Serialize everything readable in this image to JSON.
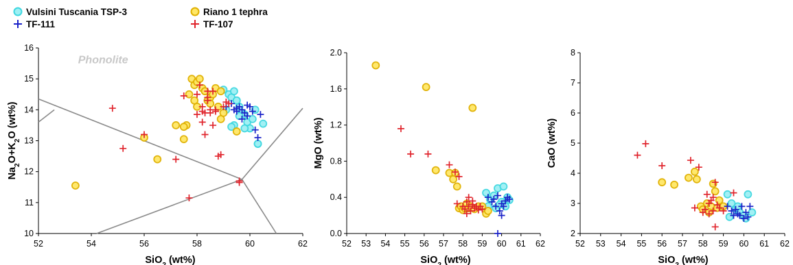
{
  "legend": [
    {
      "label": "Vulsini Tuscania TSP-3",
      "marker": "circle",
      "fill": "#9ef0f4",
      "stroke": "#3fd7e0"
    },
    {
      "label": "Riano 1 tephra",
      "marker": "circle",
      "fill": "#ffe766",
      "stroke": "#e0b000"
    },
    {
      "label": "TF-111",
      "marker": "plus",
      "stroke": "#1a22c8"
    },
    {
      "label": "TF-107",
      "marker": "plus",
      "stroke": "#e0242c"
    }
  ],
  "chart_data": [
    {
      "type": "scatter",
      "title": "",
      "xlabel": "SiO₂ (wt%)",
      "ylabel": "Na₂O+K₂O (wt%)",
      "xlim": [
        52,
        62
      ],
      "ylim": [
        10,
        16
      ],
      "xticks": [
        "52",
        "54",
        "56",
        "58",
        "60",
        "62"
      ],
      "yticks": [
        "10",
        "11",
        "12",
        "13",
        "14",
        "15",
        "16"
      ],
      "field_label": "Phonolite",
      "field_lines": [
        {
          "x": [
            52,
            59.7
          ],
          "y": [
            14.35,
            11.75
          ]
        },
        {
          "x": [
            52,
            52.6
          ],
          "y": [
            13.6,
            14.0
          ]
        },
        {
          "x": [
            59.7,
            62
          ],
          "y": [
            11.75,
            14.05
          ]
        },
        {
          "x": [
            54.2,
            59.7
          ],
          "y": [
            10.0,
            11.75
          ]
        },
        {
          "x": [
            59.7,
            61.0
          ],
          "y": [
            11.75,
            10.0
          ]
        }
      ],
      "series": [
        {
          "name": "Vulsini Tuscania TSP-3",
          "x": [
            59.0,
            59.2,
            59.3,
            59.4,
            59.5,
            59.6,
            59.7,
            59.8,
            59.9,
            60.0,
            60.1,
            60.2,
            60.3,
            60.5,
            59.1,
            59.4,
            59.6,
            59.8,
            59.3,
            59.5,
            60.3
          ],
          "y": [
            14.65,
            14.5,
            14.4,
            14.6,
            14.3,
            14.1,
            13.9,
            13.85,
            13.6,
            13.4,
            13.7,
            14.0,
            12.9,
            13.55,
            14.0,
            13.5,
            13.8,
            13.4,
            13.45,
            14.3,
            12.9
          ]
        },
        {
          "name": "Riano 1 tephra",
          "x": [
            53.4,
            56.0,
            56.5,
            57.2,
            57.5,
            57.6,
            57.5,
            57.7,
            57.8,
            57.9,
            58.0,
            58.1,
            58.2,
            58.3,
            58.4,
            58.5,
            58.6,
            58.7,
            58.8,
            58.9,
            59.0,
            58.5,
            58.9,
            59.5,
            58.3,
            58.0,
            57.9
          ],
          "y": [
            11.55,
            13.1,
            12.4,
            13.5,
            13.05,
            13.5,
            13.45,
            14.5,
            15.0,
            14.8,
            14.9,
            15.0,
            14.7,
            14.6,
            14.3,
            14.4,
            14.5,
            14.7,
            14.1,
            13.7,
            13.9,
            14.2,
            14.6,
            13.3,
            14.6,
            14.1,
            14.3
          ]
        },
        {
          "name": "TF-111",
          "x": [
            59.1,
            59.3,
            59.4,
            59.5,
            59.6,
            59.7,
            59.8,
            59.9,
            60.0,
            60.1,
            60.2,
            60.3,
            60.4,
            59.5,
            59.7,
            59.9
          ],
          "y": [
            14.1,
            14.2,
            14.0,
            14.05,
            14.1,
            14.0,
            13.9,
            14.15,
            14.1,
            13.95,
            13.35,
            13.1,
            13.85,
            13.95,
            13.7,
            13.8
          ]
        },
        {
          "name": "TF-107",
          "x": [
            54.8,
            55.2,
            56.0,
            57.2,
            57.5,
            57.7,
            58.0,
            58.1,
            58.2,
            58.2,
            58.3,
            58.3,
            58.4,
            58.4,
            58.5,
            58.5,
            58.6,
            58.6,
            58.7,
            58.8,
            58.9,
            59.0,
            59.1,
            59.2,
            58.4,
            58.7,
            59.6,
            59.6,
            58.0,
            58.2
          ],
          "y": [
            14.05,
            12.75,
            13.2,
            12.4,
            14.45,
            11.15,
            14.5,
            14.8,
            13.6,
            14.1,
            13.9,
            13.2,
            14.4,
            14.3,
            13.9,
            14.0,
            13.5,
            14.6,
            13.95,
            12.5,
            12.55,
            14.1,
            14.25,
            14.2,
            14.6,
            14.0,
            11.7,
            11.65,
            13.85,
            13.95
          ]
        }
      ]
    },
    {
      "type": "scatter",
      "title": "",
      "xlabel": "SiO₂ (wt%)",
      "ylabel": "MgO (wt%)",
      "xlim": [
        52,
        62
      ],
      "ylim": [
        0,
        2.0
      ],
      "xticks": [
        "52",
        "53",
        "54",
        "55",
        "56",
        "57",
        "58",
        "59",
        "60",
        "61",
        "62"
      ],
      "yticks": [
        "0.0",
        "0.4",
        "0.8",
        "1.2",
        "1.6",
        "2.0"
      ],
      "series": [
        {
          "name": "Vulsini Tuscania TSP-3",
          "x": [
            59.2,
            59.4,
            59.6,
            59.8,
            60.0,
            60.1,
            60.2,
            60.3,
            59.3,
            59.7,
            59.9,
            60.4
          ],
          "y": [
            0.45,
            0.38,
            0.42,
            0.5,
            0.35,
            0.52,
            0.3,
            0.4,
            0.3,
            0.28,
            0.32,
            0.37
          ]
        },
        {
          "name": "Riano 1 tephra",
          "x": [
            53.5,
            56.1,
            58.5,
            56.6,
            57.3,
            57.6,
            57.7,
            57.8,
            57.9,
            58.0,
            58.1,
            58.2,
            58.3,
            58.4,
            58.6,
            58.8,
            59.0,
            59.2,
            59.3,
            57.5
          ],
          "y": [
            1.86,
            1.62,
            1.39,
            0.7,
            0.67,
            0.67,
            0.52,
            0.28,
            0.3,
            0.26,
            0.28,
            0.33,
            0.28,
            0.3,
            0.27,
            0.3,
            0.3,
            0.22,
            0.25,
            0.6
          ]
        },
        {
          "name": "TF-111",
          "x": [
            59.3,
            59.5,
            59.6,
            59.7,
            59.8,
            59.9,
            60.0,
            60.1,
            60.2,
            60.3,
            60.4,
            59.8,
            60.0
          ],
          "y": [
            0.4,
            0.35,
            0.38,
            0.3,
            0.42,
            0.25,
            0.33,
            0.3,
            0.36,
            0.4,
            0.38,
            0.0,
            0.2
          ]
        },
        {
          "name": "TF-107",
          "x": [
            54.8,
            55.3,
            56.2,
            57.3,
            57.6,
            57.8,
            57.7,
            58.0,
            58.1,
            58.2,
            58.3,
            58.4,
            58.5,
            58.6,
            58.7,
            58.8,
            58.9,
            59.0,
            58.3,
            58.5,
            58.2
          ],
          "y": [
            1.16,
            0.88,
            0.88,
            0.76,
            0.68,
            0.63,
            0.33,
            0.3,
            0.27,
            0.35,
            0.3,
            0.25,
            0.32,
            0.28,
            0.3,
            0.26,
            0.3,
            0.27,
            0.4,
            0.36,
            0.22
          ]
        }
      ]
    },
    {
      "type": "scatter",
      "title": "",
      "xlabel": "SiO₂ (wt%)",
      "ylabel": "CaO (wt%)",
      "xlim": [
        52,
        62
      ],
      "ylim": [
        2,
        8
      ],
      "xticks": [
        "52",
        "53",
        "54",
        "55",
        "56",
        "57",
        "58",
        "59",
        "60",
        "61",
        "62"
      ],
      "yticks": [
        "2",
        "3",
        "4",
        "5",
        "6",
        "7",
        "8"
      ],
      "series": [
        {
          "name": "Vulsini Tuscania TSP-3",
          "x": [
            59.2,
            59.4,
            59.6,
            59.8,
            60.0,
            60.2,
            60.4,
            59.3,
            59.7,
            60.1
          ],
          "y": [
            3.3,
            3.0,
            2.8,
            2.7,
            2.6,
            3.3,
            2.7,
            2.55,
            2.9,
            2.5
          ]
        },
        {
          "name": "Riano 1 tephra",
          "x": [
            56.0,
            56.6,
            57.3,
            57.6,
            57.7,
            57.9,
            58.0,
            58.2,
            58.4,
            58.5,
            58.6,
            58.8,
            59.0,
            58.3,
            58.7
          ],
          "y": [
            3.7,
            3.62,
            3.85,
            4.05,
            3.8,
            2.9,
            2.8,
            3.0,
            2.9,
            3.65,
            3.4,
            3.1,
            2.9,
            2.7,
            2.85
          ]
        },
        {
          "name": "TF-111",
          "x": [
            59.2,
            59.4,
            59.6,
            59.7,
            59.8,
            59.9,
            60.0,
            60.1,
            60.2,
            60.3,
            59.5
          ],
          "y": [
            2.9,
            2.75,
            2.8,
            2.65,
            2.6,
            2.9,
            2.5,
            2.7,
            2.55,
            2.9,
            2.6
          ]
        },
        {
          "name": "TF-107",
          "x": [
            54.8,
            55.2,
            56.0,
            57.4,
            57.8,
            57.6,
            58.0,
            58.1,
            58.2,
            58.3,
            58.4,
            58.5,
            58.6,
            58.7,
            58.8,
            59.0,
            59.5,
            58.6,
            58.3,
            58.5
          ],
          "y": [
            4.6,
            4.98,
            4.25,
            4.43,
            4.2,
            2.85,
            2.7,
            2.8,
            3.3,
            3.0,
            3.1,
            3.2,
            3.7,
            2.95,
            2.85,
            2.75,
            3.35,
            2.22,
            2.65,
            2.75
          ]
        }
      ]
    }
  ]
}
